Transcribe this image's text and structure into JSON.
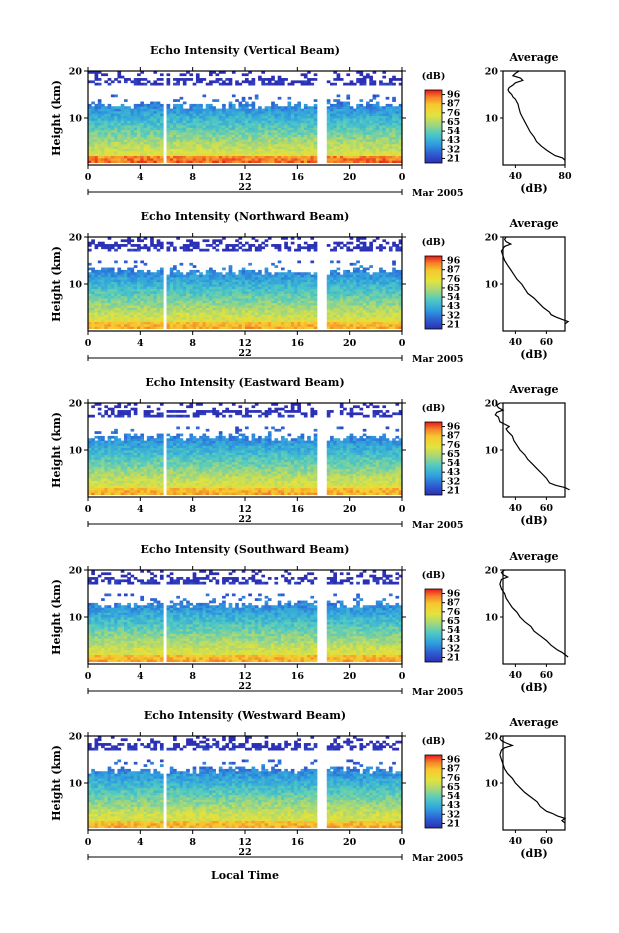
{
  "panels": [
    {
      "title": "Echo Intensity (Vertical Beam)",
      "avg_x_ticks": [
        "40",
        "80"
      ],
      "avg_profile": [
        [
          20,
          43
        ],
        [
          19.5,
          40
        ],
        [
          19,
          38
        ],
        [
          18.5,
          44
        ],
        [
          18,
          46
        ],
        [
          17.5,
          40
        ],
        [
          17,
          38
        ],
        [
          16.5,
          35
        ],
        [
          16,
          34
        ],
        [
          15.5,
          35
        ],
        [
          15,
          37
        ],
        [
          14.5,
          38
        ],
        [
          14,
          40
        ],
        [
          13.5,
          41
        ],
        [
          13,
          42
        ],
        [
          12,
          43
        ],
        [
          11,
          44
        ],
        [
          10,
          46
        ],
        [
          9,
          48
        ],
        [
          8,
          50
        ],
        [
          7,
          52
        ],
        [
          6,
          55
        ],
        [
          5,
          57
        ],
        [
          4,
          61
        ],
        [
          3,
          66
        ],
        [
          2,
          72
        ],
        [
          1.5,
          78
        ],
        [
          1,
          80
        ]
      ]
    },
    {
      "title": "Echo Intensity (Northward Beam)",
      "avg_x_ticks": [
        "40",
        "60"
      ],
      "avg_profile": [
        [
          20,
          34
        ],
        [
          19.5,
          33
        ],
        [
          19,
          34
        ],
        [
          18.5,
          37
        ],
        [
          18,
          33
        ],
        [
          17.5,
          32
        ],
        [
          17,
          31
        ],
        [
          16,
          32
        ],
        [
          15,
          33
        ],
        [
          14,
          35
        ],
        [
          13,
          37
        ],
        [
          12,
          39
        ],
        [
          11,
          41
        ],
        [
          10,
          44
        ],
        [
          9,
          46
        ],
        [
          8,
          48
        ],
        [
          7,
          52
        ],
        [
          6,
          55
        ],
        [
          5,
          58
        ],
        [
          4,
          62
        ],
        [
          3.5,
          63
        ],
        [
          3,
          66
        ],
        [
          2.5,
          70
        ],
        [
          2,
          74
        ],
        [
          1.5,
          72
        ]
      ]
    },
    {
      "title": "Echo Intensity (Eastward Beam)",
      "avg_x_ticks": [
        "40",
        "60"
      ],
      "avg_profile": [
        [
          20,
          30
        ],
        [
          19.5,
          28
        ],
        [
          19,
          29
        ],
        [
          18.5,
          32
        ],
        [
          18,
          28
        ],
        [
          17.5,
          27
        ],
        [
          17,
          29
        ],
        [
          16,
          30
        ],
        [
          15.5,
          33
        ],
        [
          15,
          36
        ],
        [
          14.5,
          34
        ],
        [
          14,
          35
        ],
        [
          13,
          38
        ],
        [
          12,
          39
        ],
        [
          11,
          41
        ],
        [
          10,
          43
        ],
        [
          9,
          46
        ],
        [
          8,
          48
        ],
        [
          7,
          51
        ],
        [
          6,
          54
        ],
        [
          5,
          57
        ],
        [
          4,
          60
        ],
        [
          3,
          62
        ],
        [
          2.5,
          66
        ],
        [
          2,
          72
        ],
        [
          1.5,
          75
        ]
      ]
    },
    {
      "title": "Echo Intensity (Southward Beam)",
      "avg_x_ticks": [
        "40",
        "60"
      ],
      "avg_profile": [
        [
          20,
          33
        ],
        [
          19.5,
          31
        ],
        [
          19,
          32
        ],
        [
          18.5,
          35
        ],
        [
          18,
          31
        ],
        [
          17,
          30
        ],
        [
          16,
          31
        ],
        [
          15,
          33
        ],
        [
          14,
          34
        ],
        [
          13,
          36
        ],
        [
          12,
          38
        ],
        [
          11,
          41
        ],
        [
          10,
          43
        ],
        [
          9,
          46
        ],
        [
          8,
          50
        ],
        [
          7,
          52
        ],
        [
          6,
          56
        ],
        [
          5,
          60
        ],
        [
          4,
          63
        ],
        [
          3,
          67
        ],
        [
          2.5,
          70
        ],
        [
          2,
          72
        ],
        [
          1.5,
          74
        ]
      ]
    },
    {
      "title": "Echo Intensity (Westward Beam)",
      "avg_x_ticks": [
        "40",
        "60"
      ],
      "avg_profile": [
        [
          20,
          31
        ],
        [
          19.5,
          30
        ],
        [
          19,
          31
        ],
        [
          18.5,
          34
        ],
        [
          18,
          38
        ],
        [
          17.5,
          33
        ],
        [
          17,
          31
        ],
        [
          16,
          30
        ],
        [
          15,
          31
        ],
        [
          14,
          32
        ],
        [
          13,
          33
        ],
        [
          12,
          35
        ],
        [
          11,
          38
        ],
        [
          10,
          40
        ],
        [
          9,
          43
        ],
        [
          8,
          46
        ],
        [
          7,
          50
        ],
        [
          6,
          54
        ],
        [
          5,
          56
        ],
        [
          4,
          60
        ],
        [
          3.5,
          64
        ],
        [
          3,
          67
        ],
        [
          2.5,
          72
        ],
        [
          2,
          70
        ],
        [
          1.5,
          72
        ]
      ]
    }
  ],
  "chart_data": {
    "type": "heatmap",
    "ylabel": "Height (km)",
    "x_ticks": [
      "0",
      "4",
      "8",
      "12",
      "16",
      "20",
      "0"
    ],
    "y_ticks": [
      "20",
      "10"
    ],
    "ylim": [
      0,
      20
    ],
    "xlim": [
      0,
      24
    ],
    "day_label": "22",
    "month_label": "Mar 2005",
    "colorbar_unit": "(dB)",
    "colorbar_ticks": [
      "96",
      "87",
      "76",
      "65",
      "54",
      "43",
      "32",
      "21"
    ],
    "colorbar_colors": [
      "#e8191b",
      "#f5822a",
      "#f7c72f",
      "#e3e33c",
      "#a5d77a",
      "#4fc9c4",
      "#2f9fdf",
      "#2e5fd2",
      "#2c2fb5"
    ],
    "avg_title": "Average",
    "avg_unit": "(dB)",
    "avg_y_ticks": [
      "20",
      "10"
    ],
    "xlabel": "Local Time",
    "data_gaps_hours": [
      [
        5.8,
        6.0
      ],
      [
        17.6,
        18.2
      ]
    ]
  }
}
